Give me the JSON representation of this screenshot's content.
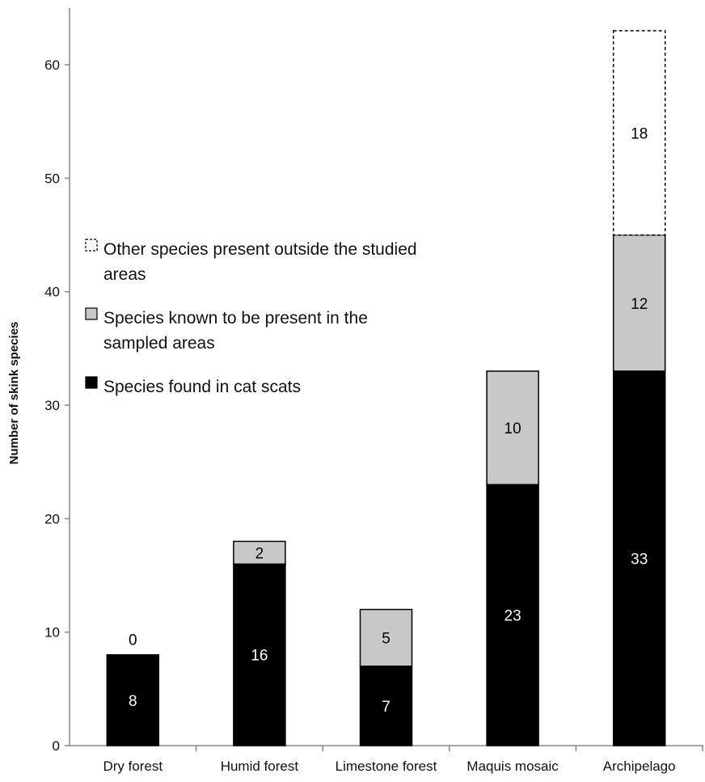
{
  "chart_data": {
    "type": "bar",
    "stacked": true,
    "title": "",
    "xlabel": "",
    "ylabel": "Number of skink species",
    "ylim": [
      0,
      63
    ],
    "yticks": [
      0,
      10,
      20,
      30,
      40,
      50,
      60
    ],
    "grid": false,
    "legend_position": "center-left",
    "categories": [
      "Dry forest",
      "Humid forest",
      "Limestone forest",
      "Maquis mosaic",
      "Archipelago"
    ],
    "series": [
      {
        "name": "Species found in cat scats",
        "values": [
          8,
          16,
          7,
          23,
          33
        ],
        "labels": [
          "8",
          "16",
          "7",
          "23",
          "33"
        ],
        "color": "#000000",
        "label_color": "#ffffff"
      },
      {
        "name": "Species known to be present in the sampled areas",
        "values": [
          0,
          2,
          5,
          10,
          12
        ],
        "labels": [
          "0",
          "2",
          "5",
          "10",
          "12"
        ],
        "color": "#c8c8c8",
        "label_color": "#000000"
      },
      {
        "name": "Other species present outside the studied areas",
        "values": [
          0,
          0,
          0,
          0,
          18
        ],
        "labels": [
          "",
          "",
          "",
          "",
          "18"
        ],
        "color": "#ffffff",
        "label_color": "#000000",
        "dashed": true
      }
    ],
    "legend": [
      {
        "lines": [
          "Other species present outside the studied",
          "areas"
        ]
      },
      {
        "lines": [
          "Species known to be present in the",
          "sampled areas"
        ]
      },
      {
        "lines": [
          "Species found in cat scats"
        ]
      }
    ]
  }
}
